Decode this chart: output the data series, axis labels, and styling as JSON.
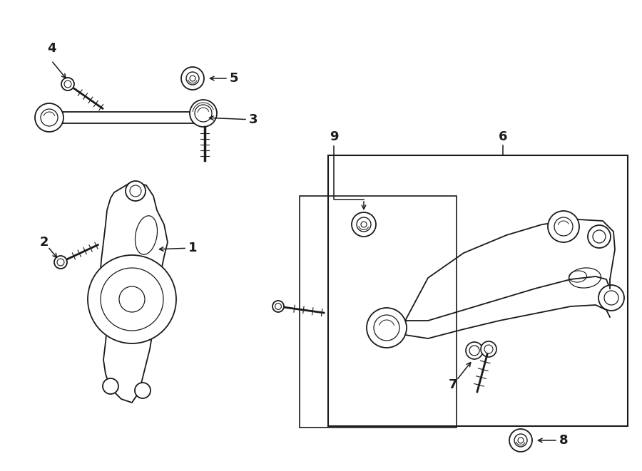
{
  "bg_color": "#ffffff",
  "line_color": "#1a1a1a",
  "fig_width": 9.0,
  "fig_height": 6.61,
  "dpi": 100,
  "label_fontsize": 13,
  "label_fontweight": "bold"
}
